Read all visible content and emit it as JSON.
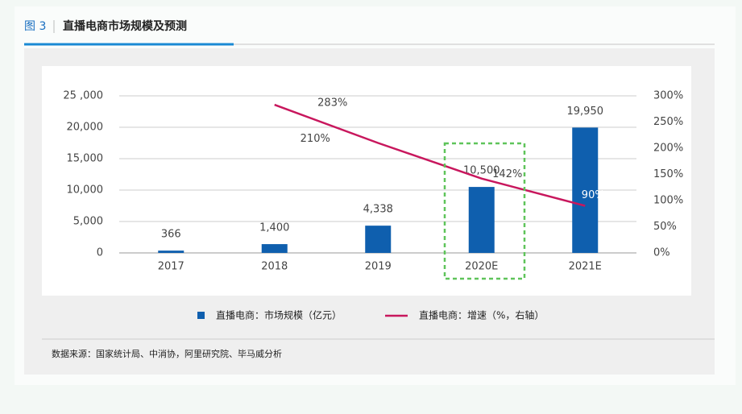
{
  "figure_label": "图 3",
  "chart_data": {
    "type": "bar_line",
    "title": "直播电商市场规模及预测",
    "categories": [
      "2017",
      "2018",
      "2019",
      "2020E",
      "2021E"
    ],
    "series": [
      {
        "name": "直播电商：市场规模（亿元）",
        "color": "#0f5fae",
        "type": "bar",
        "values": [
          366,
          1400,
          4338,
          10500,
          19950
        ],
        "value_labels": [
          "366",
          "1,400",
          "4,338",
          "10,500",
          "19,950"
        ]
      },
      {
        "name": "直播电商：增速（%，右轴）",
        "color": "#c8175d",
        "type": "line",
        "axis": "y2",
        "values": [
          null,
          283,
          210,
          142,
          90
        ],
        "value_labels": [
          null,
          "283%",
          "210%",
          "142%",
          "90%"
        ]
      }
    ],
    "ylim": [
      0,
      25000
    ],
    "yticks": [
      0,
      {
        "value": 5000,
        "label": "5,000"
      },
      {
        "value": 10000,
        "label": "10,000"
      },
      {
        "value": 15000,
        "label": "15,000"
      },
      {
        "value": 20000,
        "label": "20,000"
      },
      {
        "value": 25000,
        "label": "25 ,000"
      }
    ],
    "y2lim": [
      0,
      300
    ],
    "y2ticks": [
      {
        "value": 0,
        "label": "0%"
      },
      {
        "value": 50,
        "label": "50%"
      },
      {
        "value": 100,
        "label": "100%"
      },
      {
        "value": 150,
        "label": "150%"
      },
      {
        "value": 200,
        "label": "200%"
      },
      {
        "value": 250,
        "label": "250%"
      },
      {
        "value": 300,
        "label": "300%"
      }
    ],
    "grid": true,
    "source": "数据来源：国家统计局、中消协，阿里研究院、毕马威分析"
  }
}
